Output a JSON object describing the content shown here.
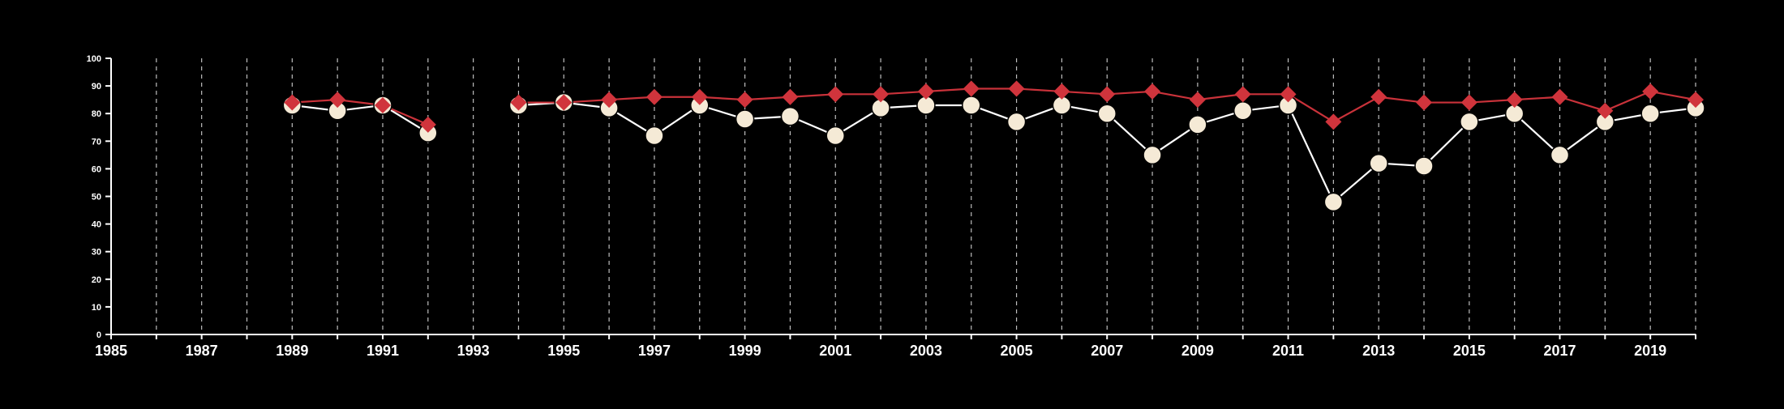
{
  "chart_data": {
    "type": "line",
    "title": "",
    "xlabel": "",
    "ylabel": "",
    "xlim": [
      1985,
      2020
    ],
    "ylim": [
      0,
      100
    ],
    "grid": "vertical-dashed",
    "x_ticks": [
      1985,
      1987,
      1989,
      1991,
      1993,
      1995,
      1997,
      1999,
      2001,
      2003,
      2005,
      2007,
      2009,
      2011,
      2013,
      2015,
      2017,
      2019
    ],
    "x_tick_labels": [
      "1985",
      "1987",
      "1989",
      "1991",
      "1993",
      "1995",
      "1997",
      "1999",
      "2001",
      "2003",
      "2005",
      "2007",
      "2009",
      "2011",
      "2013",
      "2015",
      "2017",
      "2019"
    ],
    "y_ticks": [
      0,
      10,
      20,
      30,
      40,
      50,
      60,
      70,
      80,
      90,
      100
    ],
    "y_tick_labels": [
      "0",
      "10",
      "20",
      "30",
      "40",
      "50",
      "60",
      "70",
      "80",
      "90",
      "100"
    ],
    "series": [
      {
        "marker": "circle",
        "line_color": "#ffffff",
        "marker_color": "#f5ead6",
        "points": [
          {
            "x": 1989,
            "y": 83
          },
          {
            "x": 1990,
            "y": 81
          },
          {
            "x": 1991,
            "y": 83
          },
          {
            "x": 1992,
            "y": 73
          },
          {
            "x": 1994,
            "y": 83
          },
          {
            "x": 1995,
            "y": 84
          },
          {
            "x": 1996,
            "y": 82
          },
          {
            "x": 1997,
            "y": 72
          },
          {
            "x": 1998,
            "y": 83
          },
          {
            "x": 1999,
            "y": 78
          },
          {
            "x": 2000,
            "y": 79
          },
          {
            "x": 2001,
            "y": 72
          },
          {
            "x": 2002,
            "y": 82
          },
          {
            "x": 2003,
            "y": 83
          },
          {
            "x": 2004,
            "y": 83
          },
          {
            "x": 2005,
            "y": 77
          },
          {
            "x": 2006,
            "y": 83
          },
          {
            "x": 2007,
            "y": 80
          },
          {
            "x": 2008,
            "y": 65
          },
          {
            "x": 2009,
            "y": 76
          },
          {
            "x": 2010,
            "y": 81
          },
          {
            "x": 2011,
            "y": 83
          },
          {
            "x": 2012,
            "y": 48
          },
          {
            "x": 2013,
            "y": 62
          },
          {
            "x": 2014,
            "y": 61
          },
          {
            "x": 2015,
            "y": 77
          },
          {
            "x": 2016,
            "y": 80
          },
          {
            "x": 2017,
            "y": 65
          },
          {
            "x": 2018,
            "y": 77
          },
          {
            "x": 2019,
            "y": 80
          },
          {
            "x": 2020,
            "y": 82
          }
        ]
      },
      {
        "marker": "diamond",
        "line_color": "#c9323a",
        "marker_color": "#d0343c",
        "points": [
          {
            "x": 1989,
            "y": 84
          },
          {
            "x": 1990,
            "y": 85
          },
          {
            "x": 1991,
            "y": 83
          },
          {
            "x": 1992,
            "y": 76
          },
          {
            "x": 1994,
            "y": 84
          },
          {
            "x": 1995,
            "y": 84
          },
          {
            "x": 1996,
            "y": 85
          },
          {
            "x": 1997,
            "y": 86
          },
          {
            "x": 1998,
            "y": 86
          },
          {
            "x": 1999,
            "y": 85
          },
          {
            "x": 2000,
            "y": 86
          },
          {
            "x": 2001,
            "y": 87
          },
          {
            "x": 2002,
            "y": 87
          },
          {
            "x": 2003,
            "y": 88
          },
          {
            "x": 2004,
            "y": 89
          },
          {
            "x": 2005,
            "y": 89
          },
          {
            "x": 2006,
            "y": 88
          },
          {
            "x": 2007,
            "y": 87
          },
          {
            "x": 2008,
            "y": 88
          },
          {
            "x": 2009,
            "y": 85
          },
          {
            "x": 2010,
            "y": 87
          },
          {
            "x": 2011,
            "y": 87
          },
          {
            "x": 2012,
            "y": 77
          },
          {
            "x": 2013,
            "y": 86
          },
          {
            "x": 2014,
            "y": 84
          },
          {
            "x": 2015,
            "y": 84
          },
          {
            "x": 2016,
            "y": 85
          },
          {
            "x": 2017,
            "y": 86
          },
          {
            "x": 2018,
            "y": 81
          },
          {
            "x": 2019,
            "y": 88
          },
          {
            "x": 2020,
            "y": 85
          }
        ]
      }
    ]
  }
}
